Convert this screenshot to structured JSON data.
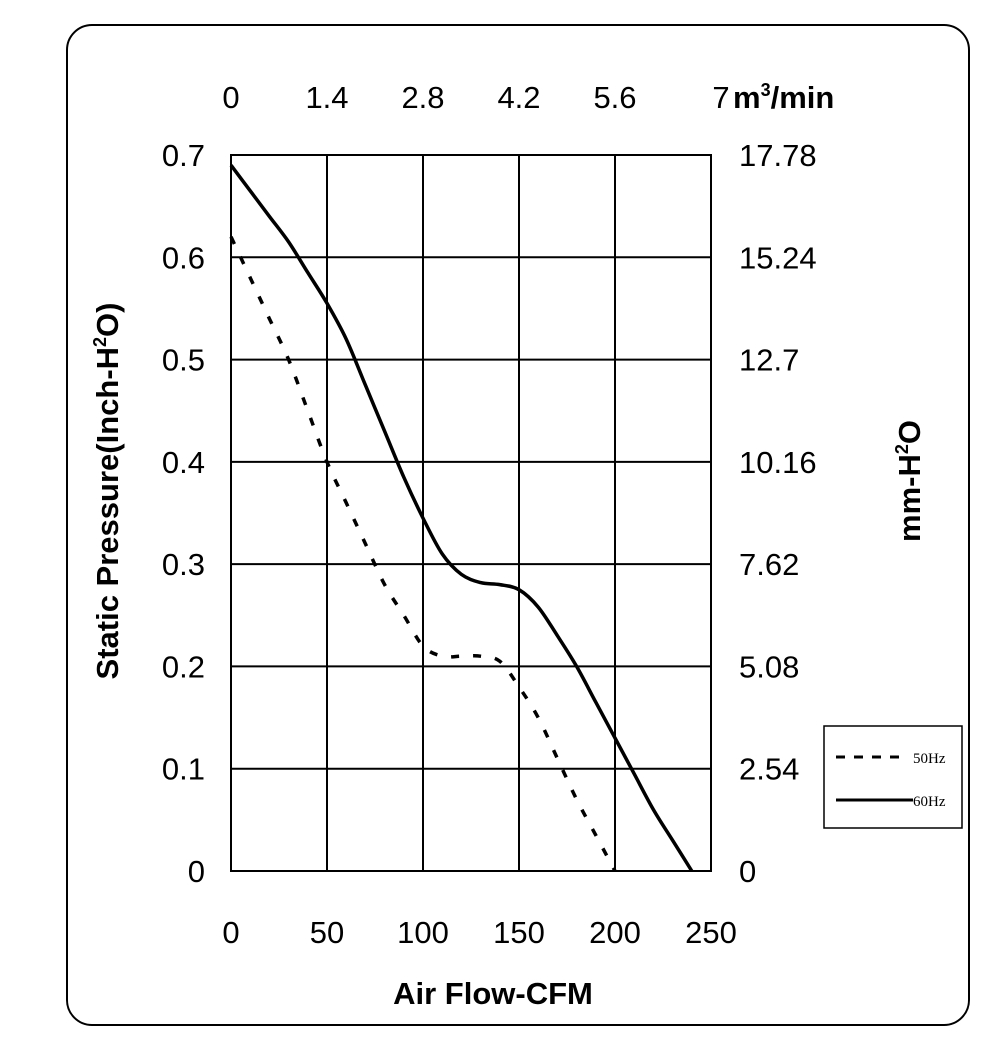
{
  "chart_data": {
    "type": "line",
    "xlabel": "Air Flow-CFM",
    "ylabel": "Static Pressure(Inch-H",
    "ylabel_sup": "2",
    "ylabel_tail": "O)",
    "y2label": "mm-H",
    "y2label_sup": "2",
    "y2label_tail": "O",
    "x2unit_prefix": "m",
    "x2unit_sup": "3",
    "x2unit_tail": "/min",
    "xlim": [
      0,
      250
    ],
    "ylim": [
      0,
      0.7
    ],
    "x_ticks": [
      "0",
      "50",
      "100",
      "150",
      "200",
      "250"
    ],
    "y_ticks": [
      "0",
      "0.1",
      "0.2",
      "0.3",
      "0.4",
      "0.5",
      "0.6",
      "0.7"
    ],
    "x2_ticks": [
      "0",
      "1.4",
      "2.8",
      "4.2",
      "5.6",
      "7"
    ],
    "y2_ticks": [
      "0",
      "2.54",
      "5.08",
      "7.62",
      "10.16",
      "12.7",
      "15.24",
      "17.78"
    ],
    "grid": true,
    "legend_position": "right",
    "series": [
      {
        "name": "50Hz",
        "style": "dashed",
        "x": [
          0,
          10,
          20,
          30,
          40,
          50,
          60,
          70,
          80,
          90,
          100,
          110,
          120,
          130,
          140,
          150,
          160,
          170,
          180,
          190,
          200
        ],
        "y": [
          0.62,
          0.58,
          0.54,
          0.5,
          0.45,
          0.4,
          0.36,
          0.32,
          0.28,
          0.25,
          0.22,
          0.21,
          0.21,
          0.21,
          0.205,
          0.18,
          0.15,
          0.11,
          0.07,
          0.035,
          0.0
        ]
      },
      {
        "name": "60Hz",
        "style": "solid",
        "x": [
          0,
          10,
          20,
          30,
          40,
          50,
          60,
          70,
          80,
          90,
          100,
          110,
          120,
          130,
          140,
          150,
          160,
          170,
          180,
          190,
          200,
          210,
          220,
          230,
          240
        ],
        "y": [
          0.69,
          0.665,
          0.64,
          0.615,
          0.585,
          0.555,
          0.52,
          0.475,
          0.43,
          0.385,
          0.345,
          0.31,
          0.29,
          0.282,
          0.28,
          0.275,
          0.258,
          0.23,
          0.2,
          0.165,
          0.13,
          0.095,
          0.06,
          0.03,
          0.0
        ]
      }
    ]
  }
}
